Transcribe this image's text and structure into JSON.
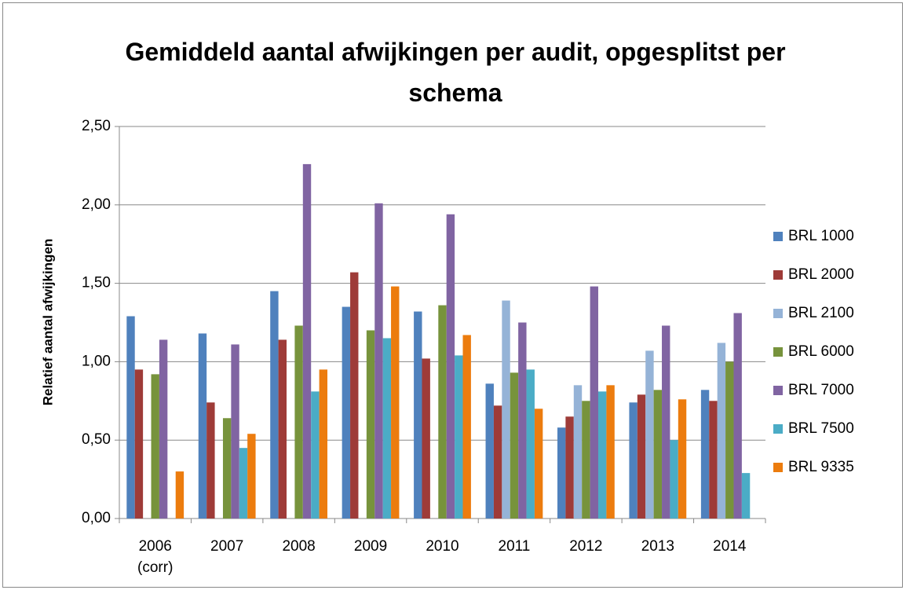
{
  "chart_data": {
    "type": "bar",
    "title": "Gemiddeld aantal afwijkingen per audit, opgesplitst per schema",
    "y_label": "Relatief aantal afwijkingen",
    "categories": [
      "2006 (corr)",
      "2007",
      "2008",
      "2009",
      "2010",
      "2011",
      "2012",
      "2013",
      "2014"
    ],
    "series": [
      {
        "name": "BRL 1000",
        "color": "#4f81bd",
        "values": [
          1.29,
          1.18,
          1.45,
          1.35,
          1.32,
          0.86,
          0.58,
          0.74,
          0.82
        ]
      },
      {
        "name": "BRL 2000",
        "color": "#9e3b38",
        "values": [
          0.95,
          0.74,
          1.14,
          1.57,
          1.02,
          0.72,
          0.65,
          0.79,
          0.75
        ]
      },
      {
        "name": "BRL 2100",
        "color": "#95b3d7",
        "values": [
          null,
          null,
          null,
          null,
          null,
          1.39,
          0.85,
          1.07,
          1.12
        ]
      },
      {
        "name": "BRL 6000",
        "color": "#77933c",
        "values": [
          0.92,
          0.64,
          1.23,
          1.2,
          1.36,
          0.93,
          0.75,
          0.82,
          1.0
        ]
      },
      {
        "name": "BRL 7000",
        "color": "#8064a2",
        "values": [
          1.14,
          1.11,
          2.26,
          2.01,
          1.94,
          1.25,
          1.48,
          1.23,
          1.31
        ]
      },
      {
        "name": "BRL 7500",
        "color": "#4bacc6",
        "values": [
          null,
          0.45,
          0.81,
          1.15,
          1.04,
          0.95,
          0.81,
          0.5,
          0.29
        ]
      },
      {
        "name": "BRL 9335",
        "color": "#ec7c0e",
        "values": [
          0.3,
          0.54,
          0.95,
          1.48,
          1.17,
          0.7,
          0.85,
          0.76,
          null
        ]
      }
    ],
    "ylim": [
      0,
      2.5
    ],
    "yticks": [
      {
        "value": 0,
        "label": "0,00"
      },
      {
        "value": 0.5,
        "label": "0,50"
      },
      {
        "value": 1,
        "label": "1,00"
      },
      {
        "value": 1.5,
        "label": "1,50"
      },
      {
        "value": 2,
        "label": "2,00"
      },
      {
        "value": 2.5,
        "label": "2,50"
      }
    ],
    "grid": true,
    "legend": "right"
  }
}
